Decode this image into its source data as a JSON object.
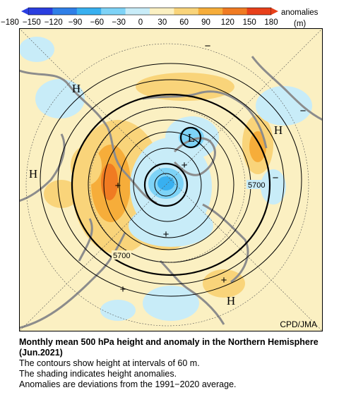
{
  "colorbar": {
    "ticks": [
      "−180",
      "−150",
      "−120",
      "−90",
      "−60",
      "−30",
      "0",
      "30",
      "60",
      "90",
      "120",
      "150",
      "180"
    ],
    "label_line1": "anomalies",
    "label_line2": "(m)",
    "colors": [
      "#2a3ee0",
      "#2f7fe8",
      "#38b0f0",
      "#7ed3f7",
      "#c8ecf8",
      "#fbf0c2",
      "#f9d47a",
      "#f6ad3a",
      "#f07b22",
      "#e8401a"
    ]
  },
  "map": {
    "credit": "CPD/JMA",
    "contour_labels": [
      "5700",
      "5700"
    ],
    "centers": [
      {
        "sym": "H"
      },
      {
        "sym": "H"
      },
      {
        "sym": "H"
      },
      {
        "sym": "H"
      },
      {
        "sym": "L"
      }
    ],
    "anomaly_signs": [
      "−",
      "−",
      "−",
      "+",
      "+",
      "+",
      "+",
      "+"
    ]
  },
  "caption": {
    "title": "Monthly mean 500 hPa height and anomaly in the Northern Hemisphere (Jun.2021)",
    "line1": "The contours show height at intervals of 60 m.",
    "line2": "The shading indicates height anomalies.",
    "line3": "Anomalies are deviations from the 1991−2020 average."
  }
}
